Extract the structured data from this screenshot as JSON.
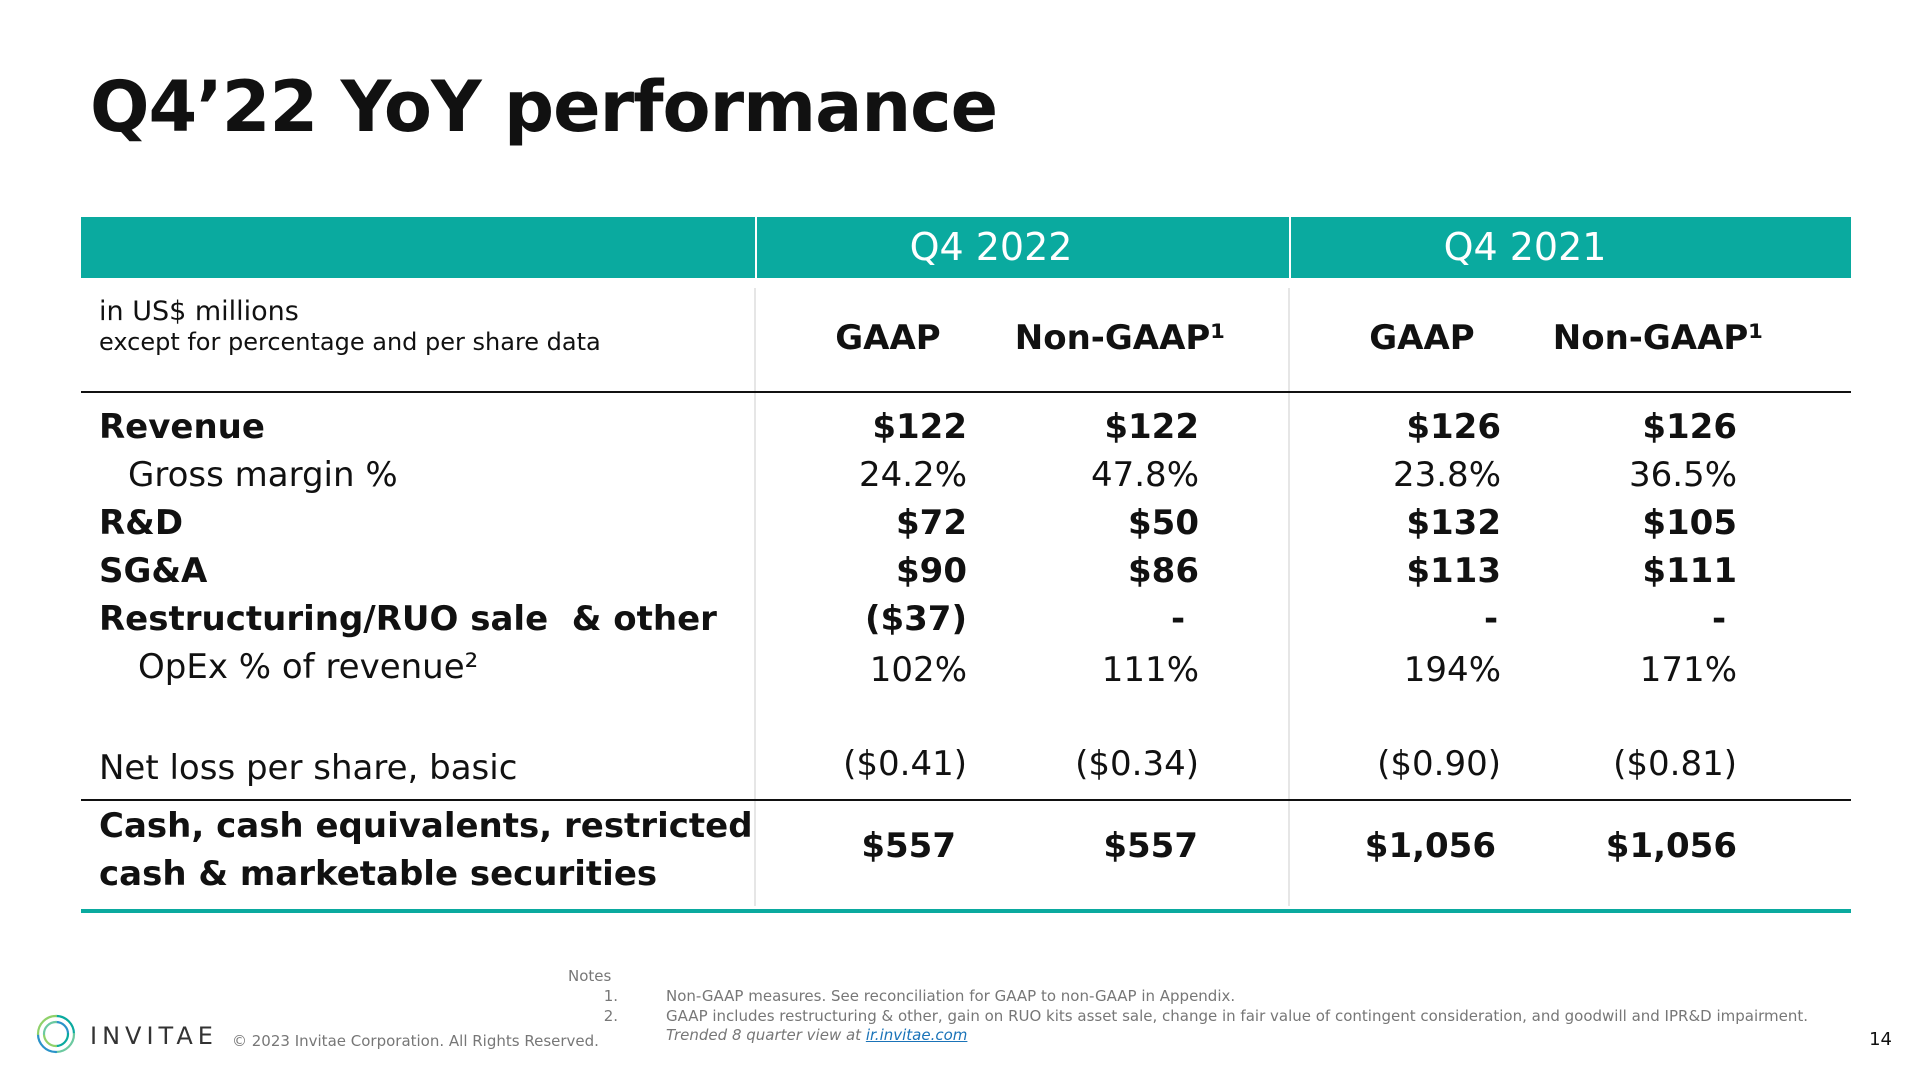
{
  "title": "Q4’22 YoY performance",
  "periods": [
    "Q4 2022",
    "Q4 2021"
  ],
  "units_line1": "in US$ millions",
  "units_line2": "except for percentage and per share data",
  "column_headers": [
    "GAAP",
    "Non-GAAP¹",
    "GAAP",
    "Non-GAAP¹"
  ],
  "rows": [
    {
      "label": "Revenue",
      "values": [
        "$122",
        "$122",
        "$126",
        "$126"
      ]
    },
    {
      "label": "Gross margin %",
      "values": [
        "24.2%",
        "47.8%",
        "23.8%",
        "36.5%"
      ]
    },
    {
      "label": "R&D",
      "values": [
        "$72",
        "$50",
        "$132",
        "$105"
      ]
    },
    {
      "label": "SG&A",
      "values": [
        "$90",
        "$86",
        "$113",
        "$111"
      ]
    },
    {
      "label": "Restructuring/RUO sale  & other",
      "values": [
        "($37)",
        "-",
        "-",
        "-"
      ]
    },
    {
      "label": "OpEx % of revenue²",
      "values": [
        "102%",
        "111%",
        "194%",
        "171%"
      ]
    },
    {
      "label": "Net loss per share, basic",
      "values": [
        "($0.41)",
        "($0.34)",
        "($0.90)",
        "($0.81)"
      ]
    }
  ],
  "cash_row": {
    "label_line1": "Cash, cash equivalents, restricted",
    "label_line2": "cash & marketable securities",
    "values": [
      "$557",
      "$557",
      "$1,056",
      "$1,056"
    ]
  },
  "notes": {
    "heading": "Notes",
    "numbers": [
      "1.",
      "2."
    ],
    "items": [
      "Non-GAAP measures. See reconciliation for GAAP to non-GAAP in Appendix.",
      "GAAP includes restructuring & other, gain on RUO kits asset sale, change in fair value of contingent consideration, and goodwill and IPR&D impairment."
    ],
    "trend_text": "Trended 8 quarter view at ",
    "trend_link": "ir.invitae.com"
  },
  "footer": {
    "logo_text": "INVITAE",
    "copyright": "© 2023 Invitae Corporation. All Rights Reserved.",
    "page_number": "14"
  },
  "colors": {
    "accent": "#0aaa9f",
    "text": "#111111",
    "muted": "#777777"
  }
}
